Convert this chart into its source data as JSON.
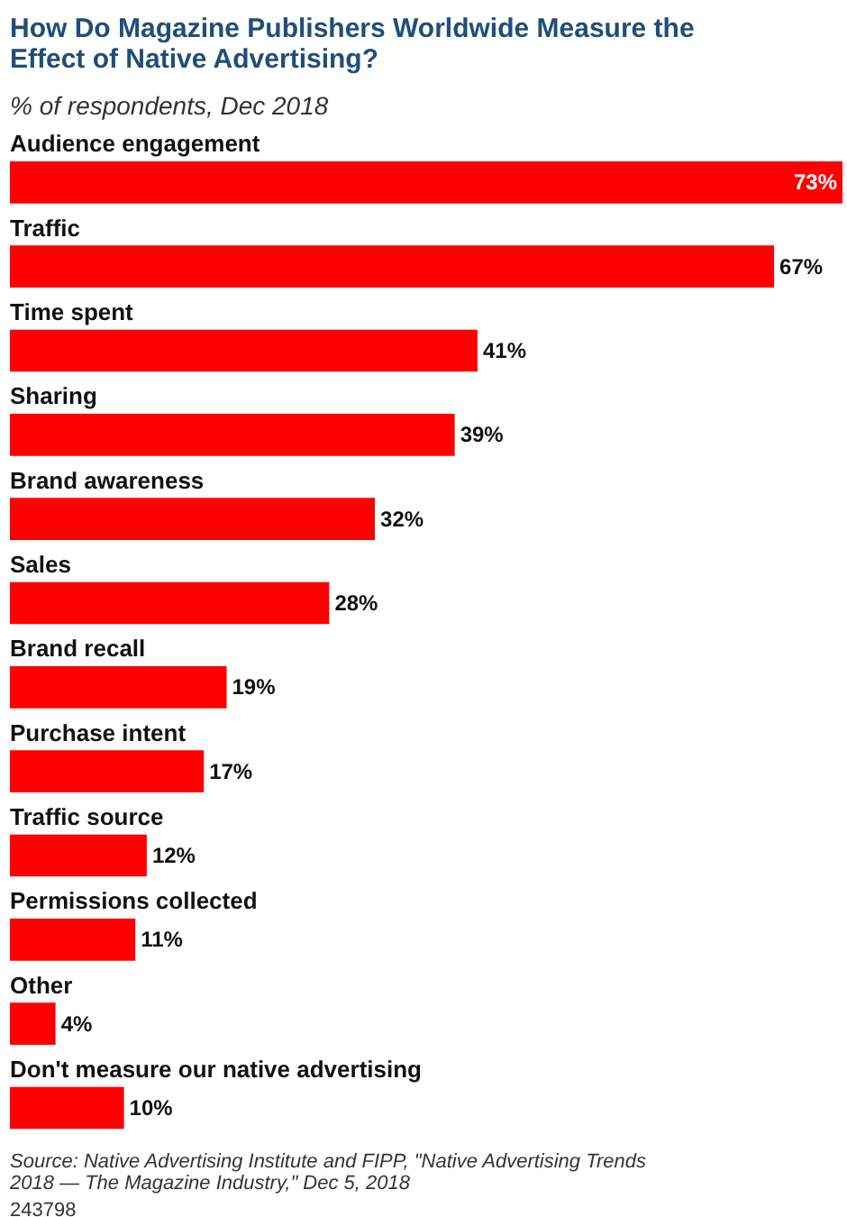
{
  "chart_data": {
    "type": "bar",
    "orientation": "horizontal",
    "title": "How Do Magazine Publishers Worldwide Measure the Effect of Native Advertising?",
    "subtitle": "% of respondents, Dec 2018",
    "categories": [
      "Audience engagement",
      "Traffic",
      "Time spent",
      "Sharing",
      "Brand awareness",
      "Sales",
      "Brand recall",
      "Purchase intent",
      "Traffic source",
      "Permissions collected",
      "Other",
      "Don't measure our native advertising"
    ],
    "values": [
      73,
      67,
      41,
      39,
      32,
      28,
      19,
      17,
      12,
      11,
      4,
      10
    ],
    "value_labels": [
      "73%",
      "67%",
      "41%",
      "39%",
      "32%",
      "28%",
      "19%",
      "17%",
      "12%",
      "11%",
      "4%",
      "10%"
    ],
    "color": "#ff0000",
    "annotations": [
      "Source: Native Advertising Institute and FIPP, \"Native Advertising Trends 2018 — The Magazine Industry,\" Dec 5, 2018",
      "243798"
    ]
  }
}
